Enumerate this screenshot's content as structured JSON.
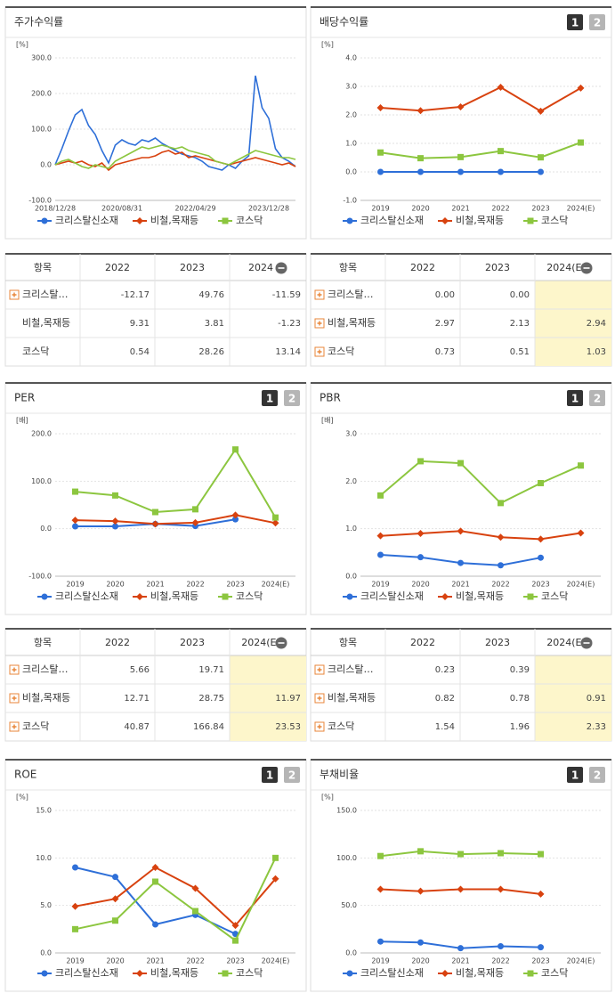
{
  "pager": [
    "1",
    "2"
  ],
  "chart_data": [
    {
      "type": "line",
      "title": "주가수익률",
      "unit": "[%]",
      "pager": false,
      "markers": false,
      "categories": [
        "2018/12/28",
        null,
        null,
        null,
        null,
        null,
        null,
        null,
        null,
        null,
        "2020/08/31",
        null,
        null,
        null,
        null,
        null,
        null,
        null,
        null,
        null,
        null,
        "2022/04/29",
        null,
        null,
        null,
        null,
        null,
        null,
        null,
        null,
        null,
        null,
        "2023/12/28",
        null,
        null,
        null,
        null
      ],
      "ylim": [
        -100,
        300
      ],
      "yticks": [
        {
          "value": -100,
          "label": "-100.0"
        },
        {
          "value": 0,
          "label": "0.0"
        },
        {
          "value": 100,
          "label": "100.0"
        },
        {
          "value": 200,
          "label": "200.0"
        },
        {
          "value": 300,
          "label": "300.0"
        }
      ],
      "series": [
        {
          "name": "크리스탈신소재",
          "color": "#2e6fd8",
          "values": [
            0,
            45,
            95,
            140,
            155,
            110,
            85,
            40,
            5,
            55,
            70,
            60,
            55,
            70,
            65,
            75,
            60,
            50,
            40,
            30,
            25,
            20,
            10,
            -5,
            -10,
            -15,
            0,
            -10,
            10,
            25,
            250,
            160,
            130,
            45,
            20,
            10,
            -5
          ]
        },
        {
          "name": "비철,목재등",
          "color": "#d8420f",
          "values": [
            0,
            5,
            10,
            5,
            10,
            0,
            -5,
            5,
            -15,
            0,
            5,
            10,
            15,
            20,
            20,
            25,
            35,
            40,
            30,
            35,
            20,
            25,
            20,
            15,
            10,
            5,
            0,
            5,
            10,
            15,
            20,
            15,
            10,
            5,
            0,
            5,
            -5
          ]
        },
        {
          "name": "코스닥",
          "color": "#8cc63f",
          "values": [
            0,
            10,
            15,
            5,
            -5,
            -10,
            0,
            -5,
            -10,
            10,
            20,
            30,
            40,
            50,
            45,
            50,
            55,
            50,
            45,
            50,
            40,
            35,
            30,
            25,
            10,
            5,
            0,
            10,
            20,
            30,
            40,
            35,
            30,
            25,
            20,
            20,
            15
          ]
        }
      ]
    },
    {
      "type": "line",
      "title": "배당수익률",
      "unit": "[%]",
      "pager": true,
      "markers": true,
      "categories": [
        "2019",
        "2020",
        "2021",
        "2022",
        "2023",
        "2024(E)"
      ],
      "ylim": [
        -1,
        4
      ],
      "yticks": [
        {
          "value": -1,
          "label": "-1.0"
        },
        {
          "value": 0,
          "label": "0.0"
        },
        {
          "value": 1,
          "label": "1.0"
        },
        {
          "value": 2,
          "label": "2.0"
        },
        {
          "value": 3,
          "label": "3.0"
        },
        {
          "value": 4,
          "label": "4.0"
        }
      ],
      "series": [
        {
          "name": "크리스탈신소재",
          "color": "#2e6fd8",
          "values": [
            0,
            0,
            0,
            0,
            0,
            null
          ]
        },
        {
          "name": "비철,목재등",
          "color": "#d8420f",
          "values": [
            2.25,
            2.15,
            2.28,
            2.97,
            2.13,
            2.94
          ]
        },
        {
          "name": "코스닥",
          "color": "#8cc63f",
          "values": [
            0.68,
            0.48,
            0.52,
            0.73,
            0.51,
            1.03
          ]
        }
      ]
    },
    {
      "type": "line",
      "title": "PER",
      "unit": "[배]",
      "pager": true,
      "markers": true,
      "categories": [
        "2019",
        "2020",
        "2021",
        "2022",
        "2023",
        "2024(E)"
      ],
      "ylim": [
        -100,
        200
      ],
      "yticks": [
        {
          "value": -100,
          "label": "-100.0"
        },
        {
          "value": 0,
          "label": "0.0"
        },
        {
          "value": 100,
          "label": "100.0"
        },
        {
          "value": 200,
          "label": "200.0"
        }
      ],
      "series": [
        {
          "name": "크리스탈신소재",
          "color": "#2e6fd8",
          "values": [
            5,
            5,
            10,
            5.66,
            19.71,
            null
          ]
        },
        {
          "name": "비철,목재등",
          "color": "#d8420f",
          "values": [
            18,
            16,
            10,
            12.71,
            28.75,
            11.97
          ]
        },
        {
          "name": "코스닥",
          "color": "#8cc63f",
          "values": [
            78,
            70,
            35,
            40.87,
            166.84,
            23.53
          ]
        }
      ]
    },
    {
      "type": "line",
      "title": "PBR",
      "unit": "[배]",
      "pager": true,
      "markers": true,
      "categories": [
        "2019",
        "2020",
        "2021",
        "2022",
        "2023",
        "2024(E)"
      ],
      "ylim": [
        0,
        3
      ],
      "yticks": [
        {
          "value": 0,
          "label": "0.0"
        },
        {
          "value": 1,
          "label": "1.0"
        },
        {
          "value": 2,
          "label": "2.0"
        },
        {
          "value": 3,
          "label": "3.0"
        }
      ],
      "series": [
        {
          "name": "크리스탈신소재",
          "color": "#2e6fd8",
          "values": [
            0.45,
            0.4,
            0.28,
            0.23,
            0.39,
            null
          ]
        },
        {
          "name": "비철,목재등",
          "color": "#d8420f",
          "values": [
            0.85,
            0.9,
            0.95,
            0.82,
            0.78,
            0.91
          ]
        },
        {
          "name": "코스닥",
          "color": "#8cc63f",
          "values": [
            1.7,
            2.42,
            2.38,
            1.54,
            1.96,
            2.33
          ]
        }
      ]
    },
    {
      "type": "line",
      "title": "ROE",
      "unit": "[%]",
      "pager": true,
      "markers": true,
      "categories": [
        "2019",
        "2020",
        "2021",
        "2022",
        "2023",
        "2024(E)"
      ],
      "ylim": [
        0,
        15
      ],
      "yticks": [
        {
          "value": 0,
          "label": "0.0"
        },
        {
          "value": 5,
          "label": "5.0"
        },
        {
          "value": 10,
          "label": "10.0"
        },
        {
          "value": 15,
          "label": "15.0"
        }
      ],
      "series": [
        {
          "name": "크리스탈신소재",
          "color": "#2e6fd8",
          "values": [
            9.0,
            8.0,
            3.0,
            4.0,
            2.0,
            null
          ]
        },
        {
          "name": "비철,목재등",
          "color": "#d8420f",
          "values": [
            4.9,
            5.7,
            9.0,
            6.8,
            2.9,
            7.8
          ]
        },
        {
          "name": "코스닥",
          "color": "#8cc63f",
          "values": [
            2.5,
            3.4,
            7.5,
            4.4,
            1.3,
            10.0
          ]
        }
      ]
    },
    {
      "type": "line",
      "title": "부채비율",
      "unit": "[%]",
      "pager": true,
      "markers": true,
      "categories": [
        "2019",
        "2020",
        "2021",
        "2022",
        "2023",
        "2024(E)"
      ],
      "ylim": [
        0,
        150
      ],
      "yticks": [
        {
          "value": 0,
          "label": "0.0"
        },
        {
          "value": 50,
          "label": "50.0"
        },
        {
          "value": 100,
          "label": "100.0"
        },
        {
          "value": 150,
          "label": "150.0"
        }
      ],
      "series": [
        {
          "name": "크리스탈신소재",
          "color": "#2e6fd8",
          "values": [
            12,
            11,
            5,
            7,
            6,
            null
          ]
        },
        {
          "name": "비철,목재등",
          "color": "#d8420f",
          "values": [
            67,
            65,
            67,
            67,
            62,
            null
          ]
        },
        {
          "name": "코스닥",
          "color": "#8cc63f",
          "values": [
            102,
            107,
            104,
            105,
            104,
            null
          ]
        }
      ]
    }
  ],
  "tables": [
    {
      "header": [
        "항목",
        "2022",
        "2023",
        "2024"
      ],
      "highlight": false,
      "rows": [
        {
          "name": "크리스탈…",
          "plus": true,
          "cells": [
            "-12.17",
            "49.76",
            "-11.59"
          ]
        },
        {
          "name": "비철,목재등",
          "plus": false,
          "cells": [
            "9.31",
            "3.81",
            "-1.23"
          ]
        },
        {
          "name": "코스닥",
          "plus": false,
          "cells": [
            "0.54",
            "28.26",
            "13.14"
          ]
        }
      ]
    },
    {
      "header": [
        "항목",
        "2022",
        "2023",
        "2024(E)"
      ],
      "highlight": true,
      "rows": [
        {
          "name": "크리스탈…",
          "plus": true,
          "cells": [
            "0.00",
            "0.00",
            null
          ]
        },
        {
          "name": "비철,목재등",
          "plus": true,
          "cells": [
            "2.97",
            "2.13",
            "2.94"
          ]
        },
        {
          "name": "코스닥",
          "plus": true,
          "cells": [
            "0.73",
            "0.51",
            "1.03"
          ]
        }
      ]
    },
    {
      "header": [
        "항목",
        "2022",
        "2023",
        "2024(E)"
      ],
      "highlight": true,
      "rows": [
        {
          "name": "크리스탈…",
          "plus": true,
          "cells": [
            "5.66",
            "19.71",
            null
          ]
        },
        {
          "name": "비철,목재등",
          "plus": true,
          "cells": [
            "12.71",
            "28.75",
            "11.97"
          ]
        },
        {
          "name": "코스닥",
          "plus": true,
          "cells": [
            "40.87",
            "166.84",
            "23.53"
          ]
        }
      ]
    },
    {
      "header": [
        "항목",
        "2022",
        "2023",
        "2024(E)"
      ],
      "highlight": true,
      "rows": [
        {
          "name": "크리스탈…",
          "plus": true,
          "cells": [
            "0.23",
            "0.39",
            null
          ]
        },
        {
          "name": "비철,목재등",
          "plus": true,
          "cells": [
            "0.82",
            "0.78",
            "0.91"
          ]
        },
        {
          "name": "코스닥",
          "plus": true,
          "cells": [
            "1.54",
            "1.96",
            "2.33"
          ]
        }
      ]
    }
  ]
}
